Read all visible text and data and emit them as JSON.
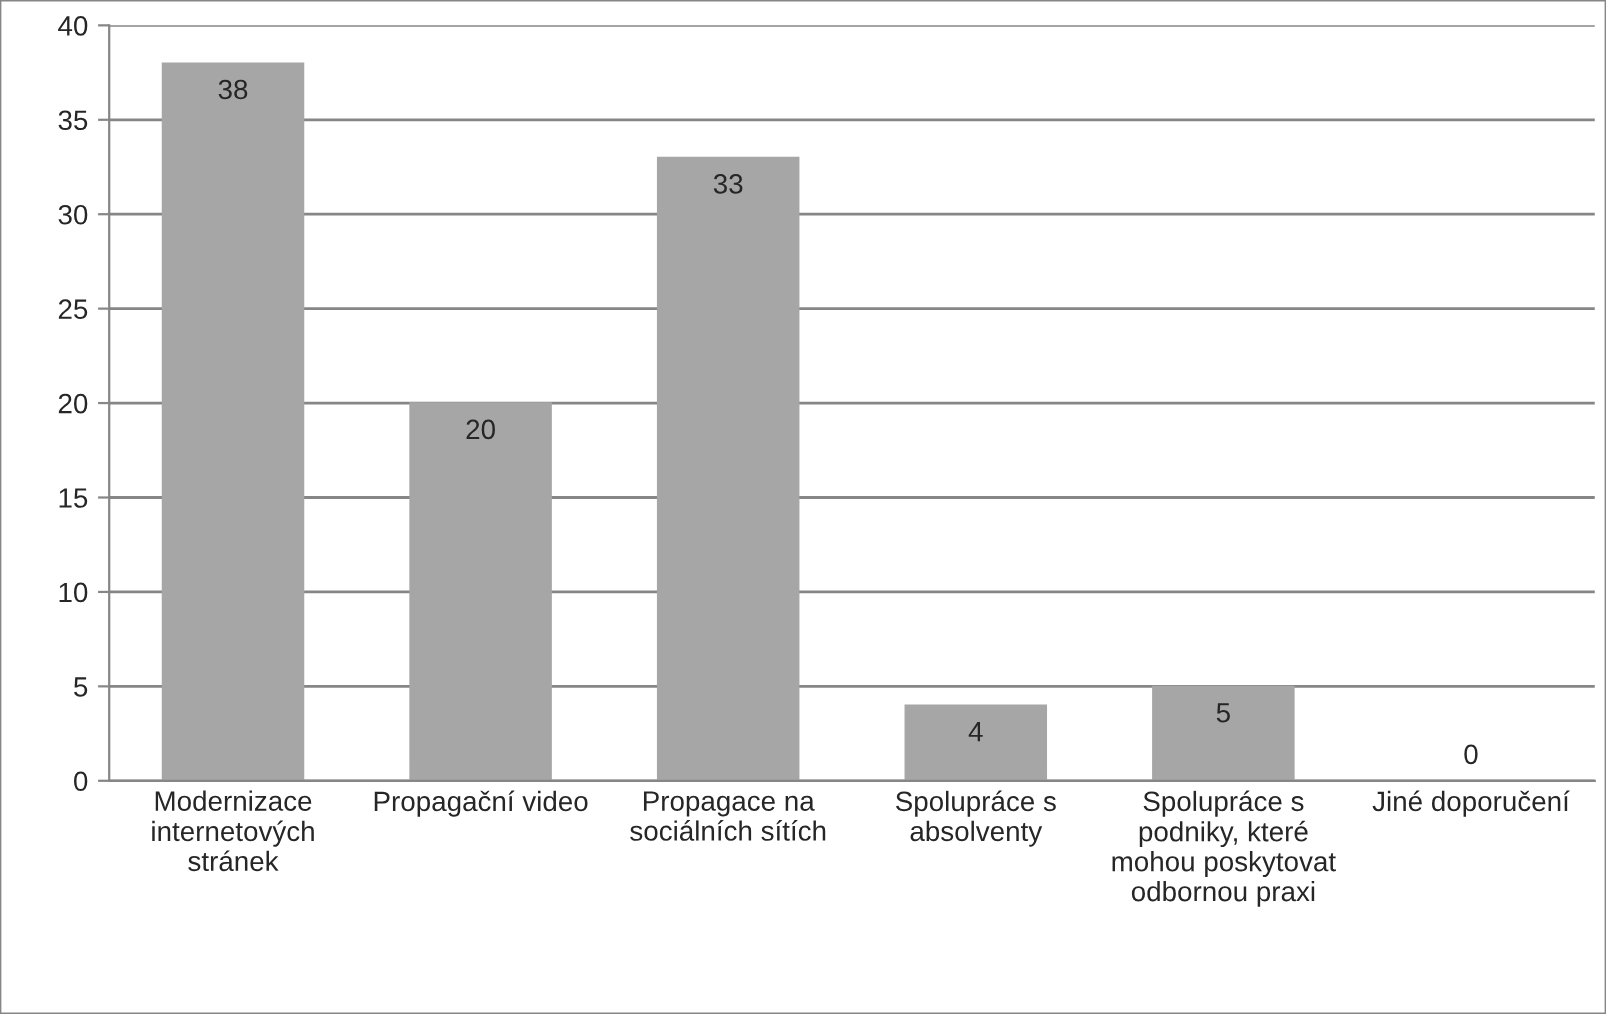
{
  "chart_data": {
    "type": "bar",
    "categories": [
      "Modernizace internetových stránek",
      "Propagační video",
      "Propagace na sociálních sítích",
      "Spolupráce s absolventy",
      "Spolupráce s podniky, které mohou poskytovat odbornou praxi",
      "Jiné doporučení"
    ],
    "values": [
      38,
      20,
      33,
      4,
      5,
      0
    ],
    "color": "#a6a6a6",
    "ylim": [
      0,
      40
    ],
    "yticks": [
      0,
      5,
      10,
      15,
      20,
      25,
      30,
      35,
      40
    ],
    "grid": "y",
    "data_labels": true,
    "legend": false
  }
}
